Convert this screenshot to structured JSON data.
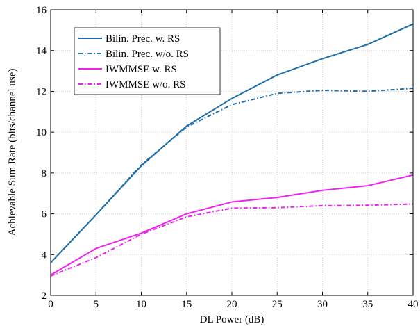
{
  "chart_data": {
    "type": "line",
    "xlabel": "DL Power (dB)",
    "ylabel": "Achievable Sum Rate (bits/channel use)",
    "xlim": [
      0,
      40
    ],
    "ylim": [
      2,
      16
    ],
    "xticks": [
      0,
      5,
      10,
      15,
      20,
      25,
      30,
      35,
      40
    ],
    "yticks": [
      2,
      4,
      6,
      8,
      10,
      12,
      14,
      16
    ],
    "grid": true,
    "legend_position": "top-left",
    "x": [
      0,
      5,
      10,
      15,
      20,
      25,
      30,
      35,
      40
    ],
    "series": [
      {
        "name": "Bilin. Prec. w. RS",
        "values": [
          3.6,
          5.95,
          8.35,
          10.3,
          11.65,
          12.8,
          13.6,
          14.3,
          15.3
        ],
        "color": "#1f6fa8",
        "dash": "solid"
      },
      {
        "name": "Bilin. Prec. w/o. RS",
        "values": [
          3.6,
          5.95,
          8.4,
          10.25,
          11.35,
          11.9,
          12.05,
          12.0,
          12.15
        ],
        "color": "#1f6fa8",
        "dash": "dashdot"
      },
      {
        "name": "IWMMSE w. RS",
        "values": [
          3.0,
          4.3,
          5.05,
          6.0,
          6.58,
          6.8,
          7.15,
          7.38,
          7.9
        ],
        "color": "#ee22ee",
        "dash": "solid"
      },
      {
        "name": "IWMMSE w/o. RS",
        "values": [
          2.95,
          3.85,
          5.0,
          5.85,
          6.28,
          6.3,
          6.4,
          6.42,
          6.48
        ],
        "color": "#ee22ee",
        "dash": "dashdot"
      }
    ]
  }
}
